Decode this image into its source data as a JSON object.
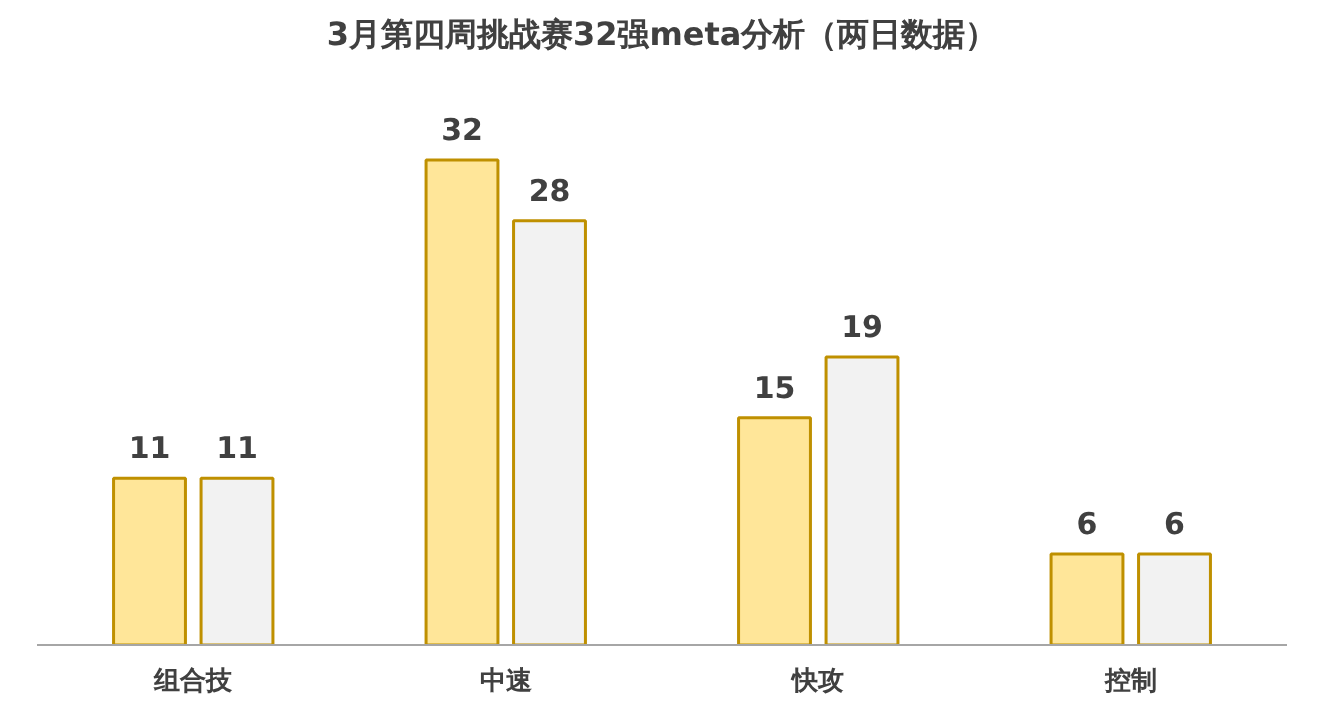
{
  "chart_data": {
    "type": "bar",
    "title": "3月第四周挑战赛32强meta分析（两日数据）",
    "categories": [
      "组合技",
      "中速",
      "快攻",
      "控制"
    ],
    "series": [
      {
        "color": "#ffe699",
        "values": [
          11,
          32,
          15,
          6
        ]
      },
      {
        "color": "#f2f2f2",
        "values": [
          11,
          28,
          19,
          6
        ]
      }
    ],
    "data_labels": true
  }
}
